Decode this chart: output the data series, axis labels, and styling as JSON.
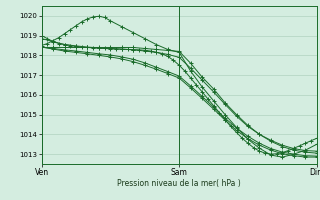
{
  "bg_color": "#d4ede0",
  "grid_color": "#a8ccb8",
  "line_color": "#1a6b2a",
  "xlabel": "Pression niveau de la mer( hPa )",
  "xtick_labels": [
    "Ven",
    "Sam",
    "Dim"
  ],
  "xtick_positions": [
    0,
    24,
    48
  ],
  "ylim": [
    1012.5,
    1020.5
  ],
  "yticks": [
    1013,
    1014,
    1015,
    1016,
    1017,
    1018,
    1019,
    1020
  ],
  "series1_x": [
    0,
    1,
    2,
    3,
    4,
    5,
    6,
    7,
    8,
    9,
    10,
    11,
    12,
    13,
    14,
    15,
    16,
    17,
    18,
    19,
    20,
    21,
    22,
    23,
    24,
    25,
    26,
    27,
    28,
    29,
    30,
    31,
    32,
    33,
    34,
    35,
    36,
    37,
    38,
    39,
    40,
    41,
    42,
    43,
    44,
    45,
    46,
    47,
    48
  ],
  "series1_y": [
    1019.0,
    1018.85,
    1018.7,
    1018.6,
    1018.55,
    1018.5,
    1018.45,
    1018.42,
    1018.4,
    1018.38,
    1018.36,
    1018.35,
    1018.33,
    1018.32,
    1018.31,
    1018.3,
    1018.29,
    1018.28,
    1018.26,
    1018.22,
    1018.16,
    1018.08,
    1017.95,
    1017.75,
    1017.5,
    1017.2,
    1016.85,
    1016.5,
    1016.15,
    1015.8,
    1015.45,
    1015.1,
    1014.75,
    1014.4,
    1014.1,
    1013.8,
    1013.55,
    1013.32,
    1013.15,
    1013.05,
    1013.0,
    1013.02,
    1013.08,
    1013.18,
    1013.3,
    1013.42,
    1013.55,
    1013.68,
    1013.8
  ],
  "series2_x": [
    0,
    1,
    2,
    3,
    4,
    5,
    6,
    7,
    8,
    9,
    10,
    11,
    12,
    14,
    16,
    18,
    20,
    22,
    24,
    26,
    28,
    30,
    32,
    34,
    36,
    38,
    40,
    42,
    44,
    46,
    48
  ],
  "series2_y": [
    1018.5,
    1018.6,
    1018.75,
    1018.9,
    1019.1,
    1019.3,
    1019.5,
    1019.7,
    1019.85,
    1019.95,
    1019.98,
    1019.92,
    1019.75,
    1019.45,
    1019.15,
    1018.85,
    1018.55,
    1018.3,
    1018.15,
    1017.2,
    1016.4,
    1015.7,
    1015.0,
    1014.35,
    1013.75,
    1013.3,
    1012.95,
    1012.85,
    1013.0,
    1013.2,
    1013.5
  ],
  "series3_x": [
    0,
    2,
    4,
    6,
    8,
    10,
    12,
    14,
    16,
    18,
    20,
    22,
    24,
    26,
    28,
    30,
    32,
    34,
    36,
    38,
    40,
    42,
    44,
    46,
    48
  ],
  "series3_y": [
    1018.4,
    1018.4,
    1018.4,
    1018.4,
    1018.4,
    1018.4,
    1018.4,
    1018.4,
    1018.4,
    1018.35,
    1018.3,
    1018.25,
    1018.2,
    1017.6,
    1016.9,
    1016.3,
    1015.6,
    1015.0,
    1014.45,
    1014.0,
    1013.65,
    1013.38,
    1013.2,
    1013.1,
    1013.05
  ],
  "series4_x": [
    0,
    2,
    4,
    6,
    8,
    10,
    12,
    14,
    16,
    18,
    20,
    22,
    24,
    26,
    28,
    30,
    32,
    34,
    36,
    38,
    40,
    42,
    44,
    46,
    48
  ],
  "series4_y": [
    1018.85,
    1018.7,
    1018.55,
    1018.48,
    1018.42,
    1018.38,
    1018.35,
    1018.32,
    1018.28,
    1018.22,
    1018.15,
    1018.05,
    1017.9,
    1017.35,
    1016.75,
    1016.15,
    1015.52,
    1014.92,
    1014.4,
    1014.0,
    1013.7,
    1013.45,
    1013.28,
    1013.18,
    1013.15
  ],
  "series5_x": [
    0,
    2,
    4,
    6,
    8,
    10,
    12,
    14,
    16,
    18,
    20,
    22,
    24,
    26,
    28,
    30,
    32,
    34,
    36,
    38,
    40,
    42,
    44,
    46,
    48
  ],
  "series5_y": [
    1018.42,
    1018.35,
    1018.28,
    1018.22,
    1018.15,
    1018.08,
    1018.02,
    1017.92,
    1017.8,
    1017.62,
    1017.4,
    1017.18,
    1016.95,
    1016.45,
    1015.92,
    1015.38,
    1014.82,
    1014.32,
    1013.9,
    1013.55,
    1013.28,
    1013.1,
    1013.0,
    1012.92,
    1012.9
  ],
  "series6_x": [
    0,
    2,
    4,
    6,
    8,
    10,
    12,
    14,
    16,
    18,
    20,
    22,
    24,
    26,
    28,
    30,
    32,
    34,
    36,
    38,
    40,
    42,
    44,
    46,
    48
  ],
  "series6_y": [
    1018.42,
    1018.32,
    1018.22,
    1018.15,
    1018.08,
    1018.0,
    1017.92,
    1017.82,
    1017.68,
    1017.5,
    1017.3,
    1017.08,
    1016.85,
    1016.35,
    1015.82,
    1015.28,
    1014.72,
    1014.2,
    1013.78,
    1013.45,
    1013.2,
    1013.02,
    1012.92,
    1012.85,
    1012.85
  ]
}
